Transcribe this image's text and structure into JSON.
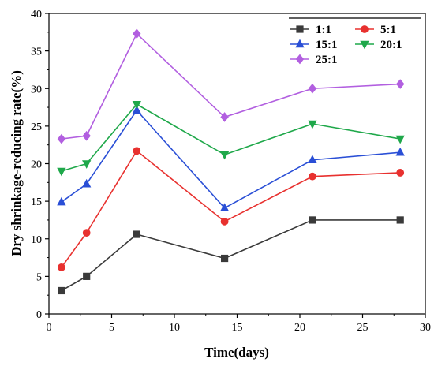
{
  "chart_data": {
    "type": "line",
    "title": "",
    "xlabel": "Time(days)",
    "ylabel": "Dry shrinkage-reducing rate(%)",
    "xlim": [
      0,
      30
    ],
    "ylim": [
      0,
      40
    ],
    "xticks": [
      0,
      5,
      10,
      15,
      20,
      25,
      30
    ],
    "yticks": [
      0,
      5,
      10,
      15,
      20,
      25,
      30,
      35,
      40
    ],
    "xtick_labels": [
      "0",
      "5",
      "10",
      "15",
      "20",
      "25",
      "30"
    ],
    "ytick_labels": [
      "0",
      "5",
      "10",
      "15",
      "20",
      "25",
      "30",
      "35",
      "40"
    ],
    "grid": false,
    "legend_position": "top-right",
    "x": [
      1,
      3,
      7,
      14,
      21,
      28
    ],
    "series": [
      {
        "name": "1:1",
        "color": "#3a3a3a",
        "marker": "square",
        "values": [
          3.1,
          5.0,
          10.6,
          7.4,
          12.5,
          12.5
        ]
      },
      {
        "name": "5:1",
        "color": "#e8312f",
        "marker": "circle",
        "values": [
          6.2,
          10.8,
          21.7,
          12.3,
          18.3,
          18.8
        ]
      },
      {
        "name": "15:1",
        "color": "#2a4fd6",
        "marker": "triangle-up",
        "values": [
          14.9,
          17.3,
          27.1,
          14.1,
          20.5,
          21.5
        ]
      },
      {
        "name": "20:1",
        "color": "#1fa84a",
        "marker": "triangle-down",
        "values": [
          19.0,
          20.0,
          27.9,
          21.2,
          25.3,
          23.3
        ]
      },
      {
        "name": "25:1",
        "color": "#b25fe0",
        "marker": "diamond",
        "values": [
          23.3,
          23.7,
          37.3,
          26.2,
          30.0,
          30.6
        ]
      }
    ]
  }
}
